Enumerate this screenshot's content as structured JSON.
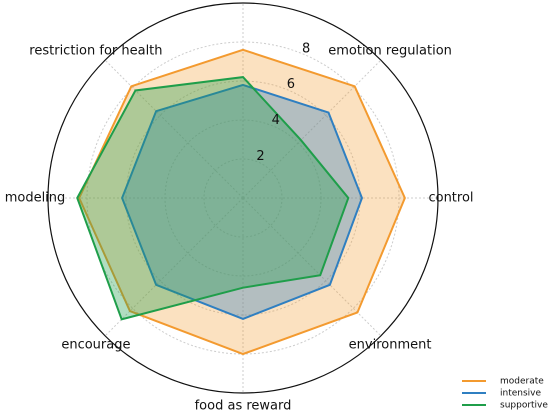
{
  "chart_data": {
    "type": "radar",
    "categories": [
      null,
      "emotion regulation",
      "control",
      "environment",
      "food as reward",
      "encourage",
      "modeling",
      "restriction for health"
    ],
    "series": [
      {
        "name": "moderate",
        "color": "#f39a2f",
        "values": [
          7.6,
          8.1,
          8.3,
          8.3,
          8.0,
          8.2,
          8.4,
          8.1
        ]
      },
      {
        "name": "intensive",
        "color": "#2f7fc1",
        "values": [
          5.8,
          6.2,
          6.1,
          6.3,
          6.2,
          6.3,
          6.2,
          6.3
        ]
      },
      {
        "name": "supportive",
        "color": "#1f9e4a",
        "values": [
          6.2,
          4.2,
          5.4,
          5.6,
          4.6,
          8.8,
          8.5,
          7.8
        ]
      }
    ],
    "rlim": [
      0,
      10
    ],
    "rticks": [
      2,
      4,
      6,
      8
    ],
    "grid": true,
    "legend": "lower right"
  }
}
